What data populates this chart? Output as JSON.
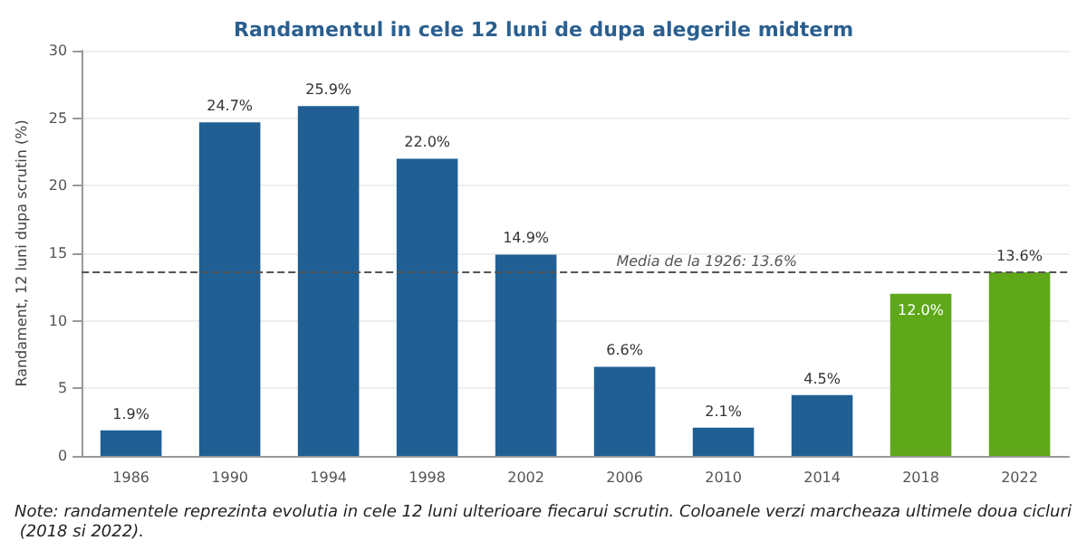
{
  "chart_data": {
    "type": "bar",
    "title": "Randamentul in cele 12 luni de dupa alegerile midterm",
    "ylabel": "Randament, 12 luni dupa scrutin (%)",
    "categories": [
      "1986",
      "1990",
      "1994",
      "1998",
      "2002",
      "2006",
      "2010",
      "2014",
      "2018",
      "2022"
    ],
    "values": [
      1.9,
      24.7,
      25.9,
      22.0,
      14.9,
      6.6,
      2.1,
      4.5,
      12.0,
      13.6
    ],
    "colors": [
      "#1f5f94",
      "#1f5f94",
      "#1f5f94",
      "#1f5f94",
      "#1f5f94",
      "#1f5f94",
      "#1f5f94",
      "#1f5f94",
      "#5fa81a",
      "#5fa81a"
    ],
    "value_labels": [
      "1.9%",
      "24.7%",
      "25.9%",
      "22.0%",
      "14.9%",
      "6.6%",
      "2.1%",
      "4.5%",
      "12.0%",
      "13.6%"
    ],
    "ylim": [
      0,
      30
    ],
    "yticks": [
      0,
      5,
      10,
      15,
      20,
      25,
      30
    ],
    "grid": "y",
    "ref_lines": [
      {
        "axis": "y",
        "value": 13.6,
        "label": "Media de la 1926: 13.6%",
        "color": "#555555",
        "line_style": "dashed"
      }
    ],
    "annotations": [
      "Note: randamentele reprezinta evolutia in cele 12 luni ulterioare fiecarui scrutin. Coloanele verzi marcheaza ultimele doua cicluri (2018 si 2022)."
    ]
  }
}
